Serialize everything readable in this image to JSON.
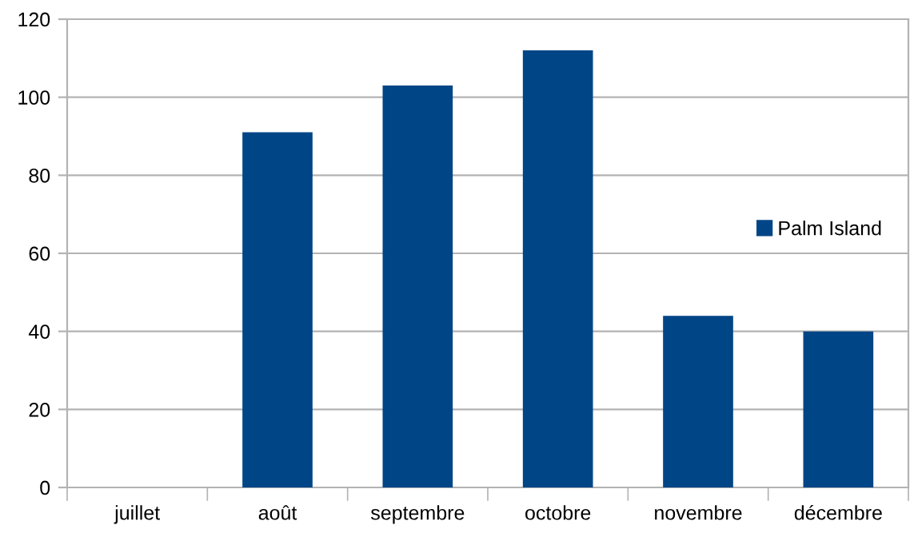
{
  "chart_data": {
    "type": "bar",
    "categories": [
      "juillet",
      "août",
      "septembre",
      "octobre",
      "novembre",
      "décembre"
    ],
    "series": [
      {
        "name": "Palm Island",
        "color": "#004586",
        "values": [
          null,
          91,
          103,
          112,
          44,
          40
        ]
      }
    ],
    "ylim": [
      0,
      120
    ],
    "yticks": [
      0,
      20,
      40,
      60,
      80,
      100,
      120
    ],
    "grid": "y",
    "legend": "right"
  }
}
